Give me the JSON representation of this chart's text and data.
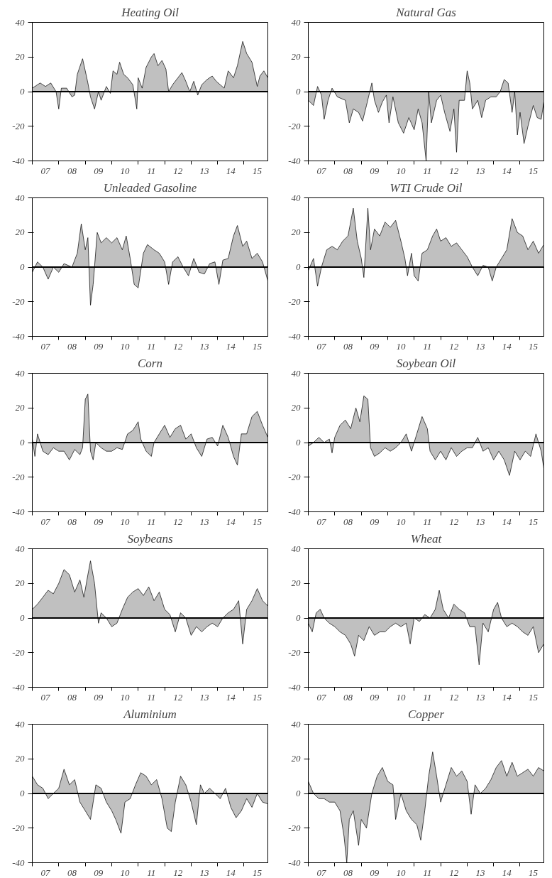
{
  "chart_data": [
    {
      "type": "area",
      "title": "Heating Oil",
      "color": "#c0c0c0",
      "xlim": [
        "2007-01-01",
        "2015-11-25"
      ],
      "ylim": [
        -40,
        40
      ],
      "yticks": [
        -40,
        -20,
        0,
        20,
        40
      ],
      "grid": false,
      "ref_lines": [
        {
          "axis": "y",
          "value": 0
        }
      ],
      "xticks": [
        {
          "value": "2007-01-01",
          "label": null
        },
        {
          "value": "2007-07-02",
          "label": "07"
        },
        {
          "value": "2008-01-01",
          "label": null
        },
        {
          "value": "2008-07-02",
          "label": "08"
        },
        {
          "value": "2009-01-01",
          "label": null
        },
        {
          "value": "2009-07-02",
          "label": "09"
        },
        {
          "value": "2010-01-01",
          "label": null
        },
        {
          "value": "2010-07-02",
          "label": "10"
        },
        {
          "value": "2011-01-01",
          "label": null
        },
        {
          "value": "2011-07-02",
          "label": "11"
        },
        {
          "value": "2012-01-01",
          "label": null
        },
        {
          "value": "2012-07-02",
          "label": "12"
        },
        {
          "value": "2013-01-01",
          "label": null
        },
        {
          "value": "2013-07-02",
          "label": "13"
        },
        {
          "value": "2014-01-01",
          "label": null
        },
        {
          "value": "2014-07-02",
          "label": "14"
        },
        {
          "value": "2015-01-01",
          "label": null
        },
        {
          "value": "2015-07-02",
          "label": "15"
        }
      ],
      "x": [
        "2007-01-01",
        "2007-04-20",
        "2007-07-02",
        "2007-09-13",
        "2007-11-25",
        "2008-01-01",
        "2008-02-06",
        "2008-04-20",
        "2008-07-02",
        "2008-08-08",
        "2008-09-13",
        "2008-11-25",
        "2009-01-01",
        "2009-02-06",
        "2009-03-14",
        "2009-05-09",
        "2009-07-02",
        "2009-08-08",
        "2009-10-19",
        "2009-12-13",
        "2010-01-19",
        "2010-03-14",
        "2010-04-20",
        "2010-06-15",
        "2010-08-08",
        "2010-10-19",
        "2010-12-13",
        "2011-01-01",
        "2011-02-25",
        "2011-04-20",
        "2011-07-02",
        "2011-08-08",
        "2011-10-01",
        "2011-11-25",
        "2012-01-19",
        "2012-02-25",
        "2012-04-20",
        "2012-07-02",
        "2012-08-26",
        "2012-10-19",
        "2012-12-13",
        "2013-02-06",
        "2013-04-02",
        "2013-05-27",
        "2013-08-08",
        "2013-10-19",
        "2013-12-13",
        "2014-02-06",
        "2014-04-02",
        "2014-05-27",
        "2014-08-08",
        "2014-10-01",
        "2014-12-13",
        "2015-02-06",
        "2015-04-20",
        "2015-07-02",
        "2015-08-08",
        "2015-10-01",
        "2015-11-25"
      ],
      "values": [
        2,
        5,
        3,
        5,
        0,
        -10,
        2,
        2,
        -3,
        -2,
        10,
        19,
        12,
        5,
        -3,
        -10,
        0,
        -5,
        3,
        -1,
        12,
        10,
        17,
        10,
        8,
        4,
        -10,
        8,
        2,
        14,
        20,
        22,
        15,
        18,
        13,
        0,
        4,
        8,
        11,
        6,
        0,
        6,
        -2,
        4,
        7,
        9,
        6,
        4,
        2,
        12,
        8,
        15,
        29,
        22,
        17,
        3,
        9,
        12,
        8
      ]
    },
    {
      "type": "area",
      "title": "Natural Gas",
      "color": "#c0c0c0",
      "xlim": [
        "2007-01-01",
        "2015-11-25"
      ],
      "ylim": [
        -40,
        40
      ],
      "yticks": [
        -40,
        -20,
        0,
        20,
        40
      ],
      "grid": false,
      "ref_lines": [
        {
          "axis": "y",
          "value": 0
        }
      ],
      "xticks": [
        {
          "value": "2007-01-01",
          "label": null
        },
        {
          "value": "2007-07-02",
          "label": "07"
        },
        {
          "value": "2008-01-01",
          "label": null
        },
        {
          "value": "2008-07-02",
          "label": "08"
        },
        {
          "value": "2009-01-01",
          "label": null
        },
        {
          "value": "2009-07-02",
          "label": "09"
        },
        {
          "value": "2010-01-01",
          "label": null
        },
        {
          "value": "2010-07-02",
          "label": "10"
        },
        {
          "value": "2011-01-01",
          "label": null
        },
        {
          "value": "2011-07-02",
          "label": "11"
        },
        {
          "value": "2012-01-01",
          "label": null
        },
        {
          "value": "2012-07-02",
          "label": "12"
        },
        {
          "value": "2013-01-01",
          "label": null
        },
        {
          "value": "2013-07-02",
          "label": "13"
        },
        {
          "value": "2014-01-01",
          "label": null
        },
        {
          "value": "2014-07-02",
          "label": "14"
        },
        {
          "value": "2015-01-01",
          "label": null
        },
        {
          "value": "2015-07-02",
          "label": "15"
        }
      ],
      "x": [
        "2007-01-01",
        "2007-03-14",
        "2007-05-09",
        "2007-07-02",
        "2007-08-08",
        "2007-10-01",
        "2007-11-25",
        "2008-02-06",
        "2008-05-27",
        "2008-07-20",
        "2008-09-13",
        "2008-11-25",
        "2009-01-19",
        "2009-03-14",
        "2009-05-27",
        "2009-07-02",
        "2009-08-26",
        "2009-10-19",
        "2009-12-13",
        "2010-01-19",
        "2010-03-14",
        "2010-05-27",
        "2010-08-08",
        "2010-10-19",
        "2011-01-01",
        "2011-02-25",
        "2011-04-20",
        "2011-06-15",
        "2011-07-20",
        "2011-08-26",
        "2011-11-07",
        "2012-01-01",
        "2012-02-25",
        "2012-05-09",
        "2012-07-02",
        "2012-08-08",
        "2012-09-13",
        "2012-11-25",
        "2013-01-01",
        "2013-02-06",
        "2013-03-14",
        "2013-05-27",
        "2013-07-20",
        "2013-09-13",
        "2013-11-25",
        "2014-02-06",
        "2014-04-02",
        "2014-05-27",
        "2014-07-20",
        "2014-09-13",
        "2014-10-19",
        "2014-11-25",
        "2015-01-01",
        "2015-02-25",
        "2015-04-20",
        "2015-07-02",
        "2015-08-26",
        "2015-10-19",
        "2015-11-25"
      ],
      "values": [
        -5,
        -8,
        3,
        -2,
        -16,
        -5,
        2,
        -3,
        -5,
        -18,
        -10,
        -12,
        -17,
        -8,
        5,
        -5,
        -12,
        -6,
        -2,
        -18,
        -3,
        -18,
        -24,
        -15,
        -22,
        -10,
        -18,
        -40,
        0,
        -18,
        -5,
        -2,
        -12,
        -23,
        -10,
        -35,
        -5,
        -5,
        12,
        5,
        -10,
        -5,
        -15,
        -5,
        -3,
        -3,
        0,
        7,
        5,
        -12,
        0,
        -25,
        -12,
        -30,
        -20,
        -8,
        -15,
        -16,
        -6
      ]
    },
    {
      "type": "area",
      "title": "Unleaded Gasoline",
      "color": "#c0c0c0",
      "xlim": [
        "2007-01-01",
        "2015-11-25"
      ],
      "ylim": [
        -40,
        40
      ],
      "yticks": [
        -40,
        -20,
        0,
        20,
        40
      ],
      "grid": false,
      "ref_lines": [
        {
          "axis": "y",
          "value": 0
        }
      ],
      "xticks": [
        {
          "value": "2007-01-01",
          "label": null
        },
        {
          "value": "2007-07-02",
          "label": "07"
        },
        {
          "value": "2008-01-01",
          "label": null
        },
        {
          "value": "2008-07-02",
          "label": "08"
        },
        {
          "value": "2009-01-01",
          "label": null
        },
        {
          "value": "2009-07-02",
          "label": "09"
        },
        {
          "value": "2010-01-01",
          "label": null
        },
        {
          "value": "2010-07-02",
          "label": "10"
        },
        {
          "value": "2011-01-01",
          "label": null
        },
        {
          "value": "2011-07-02",
          "label": "11"
        },
        {
          "value": "2012-01-01",
          "label": null
        },
        {
          "value": "2012-07-02",
          "label": "12"
        },
        {
          "value": "2013-01-01",
          "label": null
        },
        {
          "value": "2013-07-02",
          "label": "13"
        },
        {
          "value": "2014-01-01",
          "label": null
        },
        {
          "value": "2014-07-02",
          "label": "14"
        },
        {
          "value": "2015-01-01",
          "label": null
        },
        {
          "value": "2015-07-02",
          "label": "15"
        }
      ],
      "x": [
        "2007-01-01",
        "2007-03-14",
        "2007-05-27",
        "2007-08-08",
        "2007-10-19",
        "2008-01-01",
        "2008-03-14",
        "2008-07-02",
        "2008-09-13",
        "2008-11-07",
        "2009-01-01",
        "2009-02-06",
        "2009-03-14",
        "2009-04-20",
        "2009-06-15",
        "2009-08-08",
        "2009-10-19",
        "2010-01-01",
        "2010-03-14",
        "2010-05-27",
        "2010-07-20",
        "2010-09-13",
        "2010-11-07",
        "2011-01-01",
        "2011-03-14",
        "2011-05-09",
        "2011-08-08",
        "2011-10-19",
        "2012-01-01",
        "2012-02-25",
        "2012-04-20",
        "2012-07-02",
        "2012-09-13",
        "2012-11-25",
        "2013-02-06",
        "2013-04-20",
        "2013-07-02",
        "2013-09-13",
        "2013-11-25",
        "2014-01-19",
        "2014-03-14",
        "2014-05-27",
        "2014-08-08",
        "2014-10-01",
        "2014-12-13",
        "2015-02-06",
        "2015-04-20",
        "2015-07-02",
        "2015-09-13",
        "2015-11-25"
      ],
      "values": [
        -3,
        3,
        0,
        -7,
        0,
        -3,
        2,
        0,
        8,
        25,
        10,
        17,
        -22,
        -10,
        20,
        14,
        17,
        14,
        17,
        10,
        18,
        5,
        -10,
        -12,
        8,
        13,
        10,
        8,
        3,
        -10,
        3,
        6,
        0,
        -5,
        5,
        -3,
        -4,
        2,
        3,
        -10,
        4,
        5,
        18,
        24,
        12,
        15,
        5,
        8,
        3,
        -8
      ]
    },
    {
      "type": "area",
      "title": "WTI Crude Oil",
      "color": "#c0c0c0",
      "xlim": [
        "2007-01-01",
        "2015-11-25"
      ],
      "ylim": [
        -40,
        40
      ],
      "yticks": [
        -40,
        -20,
        0,
        20,
        40
      ],
      "grid": false,
      "ref_lines": [
        {
          "axis": "y",
          "value": 0
        }
      ],
      "xticks": [
        {
          "value": "2007-01-01",
          "label": null
        },
        {
          "value": "2007-07-02",
          "label": "07"
        },
        {
          "value": "2008-01-01",
          "label": null
        },
        {
          "value": "2008-07-02",
          "label": "08"
        },
        {
          "value": "2009-01-01",
          "label": null
        },
        {
          "value": "2009-07-02",
          "label": "09"
        },
        {
          "value": "2010-01-01",
          "label": null
        },
        {
          "value": "2010-07-02",
          "label": "10"
        },
        {
          "value": "2011-01-01",
          "label": null
        },
        {
          "value": "2011-07-02",
          "label": "11"
        },
        {
          "value": "2012-01-01",
          "label": null
        },
        {
          "value": "2012-07-02",
          "label": "12"
        },
        {
          "value": "2013-01-01",
          "label": null
        },
        {
          "value": "2013-07-02",
          "label": "13"
        },
        {
          "value": "2014-01-01",
          "label": null
        },
        {
          "value": "2014-07-02",
          "label": "14"
        },
        {
          "value": "2015-01-01",
          "label": null
        },
        {
          "value": "2015-07-02",
          "label": "15"
        }
      ],
      "x": [
        "2007-01-01",
        "2007-03-14",
        "2007-05-09",
        "2007-07-02",
        "2007-09-13",
        "2007-11-25",
        "2008-02-06",
        "2008-04-20",
        "2008-07-02",
        "2008-09-13",
        "2008-11-07",
        "2009-01-01",
        "2009-02-06",
        "2009-04-02",
        "2009-05-09",
        "2009-07-02",
        "2009-09-13",
        "2009-11-25",
        "2010-02-06",
        "2010-04-20",
        "2010-07-02",
        "2010-08-26",
        "2010-10-01",
        "2010-11-25",
        "2011-01-01",
        "2011-02-25",
        "2011-04-20",
        "2011-07-02",
        "2011-09-13",
        "2011-11-07",
        "2012-01-01",
        "2012-03-14",
        "2012-05-27",
        "2012-08-08",
        "2012-10-19",
        "2013-01-01",
        "2013-03-14",
        "2013-05-27",
        "2013-08-08",
        "2013-10-19",
        "2013-12-13",
        "2014-02-06",
        "2014-04-20",
        "2014-07-02",
        "2014-09-13",
        "2014-11-25",
        "2015-02-06",
        "2015-04-20",
        "2015-07-02",
        "2015-09-13",
        "2015-11-25"
      ],
      "values": [
        -2,
        5,
        -11,
        0,
        10,
        12,
        10,
        15,
        18,
        34,
        15,
        5,
        -6,
        34,
        10,
        22,
        18,
        26,
        23,
        27,
        15,
        5,
        -5,
        8,
        -5,
        -8,
        8,
        10,
        18,
        22,
        15,
        17,
        12,
        14,
        10,
        6,
        0,
        -5,
        1,
        0,
        -8,
        0,
        5,
        10,
        28,
        20,
        18,
        10,
        15,
        8,
        13
      ]
    },
    {
      "type": "area",
      "title": "Corn",
      "color": "#c0c0c0",
      "xlim": [
        "2007-01-01",
        "2015-11-25"
      ],
      "ylim": [
        -40,
        40
      ],
      "yticks": [
        -40,
        -20,
        0,
        20,
        40
      ],
      "grid": false,
      "ref_lines": [
        {
          "axis": "y",
          "value": 0
        }
      ],
      "xticks": [
        {
          "value": "2007-01-01",
          "label": null
        },
        {
          "value": "2007-07-02",
          "label": "07"
        },
        {
          "value": "2008-01-01",
          "label": null
        },
        {
          "value": "2008-07-02",
          "label": "08"
        },
        {
          "value": "2009-01-01",
          "label": null
        },
        {
          "value": "2009-07-02",
          "label": "09"
        },
        {
          "value": "2010-01-01",
          "label": null
        },
        {
          "value": "2010-07-02",
          "label": "10"
        },
        {
          "value": "2011-01-01",
          "label": null
        },
        {
          "value": "2011-07-02",
          "label": "11"
        },
        {
          "value": "2012-01-01",
          "label": null
        },
        {
          "value": "2012-07-02",
          "label": "12"
        },
        {
          "value": "2013-01-01",
          "label": null
        },
        {
          "value": "2013-07-02",
          "label": "13"
        },
        {
          "value": "2014-01-01",
          "label": null
        },
        {
          "value": "2014-07-02",
          "label": "14"
        },
        {
          "value": "2015-01-01",
          "label": null
        },
        {
          "value": "2015-07-02",
          "label": "15"
        }
      ],
      "x": [
        "2007-01-01",
        "2007-02-06",
        "2007-03-14",
        "2007-05-27",
        "2007-08-08",
        "2007-10-19",
        "2008-01-01",
        "2008-03-14",
        "2008-05-27",
        "2008-08-08",
        "2008-10-19",
        "2008-11-25",
        "2009-01-01",
        "2009-02-06",
        "2009-03-14",
        "2009-04-20",
        "2009-05-27",
        "2009-08-08",
        "2009-10-19",
        "2010-01-01",
        "2010-03-14",
        "2010-05-27",
        "2010-08-08",
        "2010-10-19",
        "2011-01-01",
        "2011-02-06",
        "2011-04-20",
        "2011-07-02",
        "2011-08-08",
        "2011-10-19",
        "2012-01-01",
        "2012-03-14",
        "2012-05-27",
        "2012-08-08",
        "2012-10-19",
        "2013-01-01",
        "2013-03-14",
        "2013-05-27",
        "2013-08-08",
        "2013-10-19",
        "2014-01-01",
        "2014-03-14",
        "2014-05-27",
        "2014-08-08",
        "2014-10-01",
        "2014-11-25",
        "2015-02-06",
        "2015-04-20",
        "2015-07-02",
        "2015-09-13",
        "2015-11-25"
      ],
      "values": [
        2,
        -8,
        5,
        -5,
        -7,
        -3,
        -5,
        -5,
        -10,
        -4,
        -7,
        -3,
        25,
        28,
        -5,
        -10,
        0,
        -3,
        -5,
        -5,
        -3,
        -4,
        5,
        7,
        12,
        2,
        -5,
        -8,
        0,
        5,
        10,
        3,
        8,
        10,
        2,
        5,
        -3,
        -8,
        2,
        3,
        -2,
        10,
        3,
        -8,
        -13,
        5,
        5,
        15,
        18,
        10,
        3
      ]
    },
    {
      "type": "area",
      "title": "Soybean Oil",
      "color": "#c0c0c0",
      "xlim": [
        "2007-01-01",
        "2015-11-25"
      ],
      "ylim": [
        -40,
        40
      ],
      "yticks": [
        -40,
        -20,
        0,
        20,
        40
      ],
      "grid": false,
      "ref_lines": [
        {
          "axis": "y",
          "value": 0
        }
      ],
      "xticks": [
        {
          "value": "2007-01-01",
          "label": null
        },
        {
          "value": "2007-07-02",
          "label": "07"
        },
        {
          "value": "2008-01-01",
          "label": null
        },
        {
          "value": "2008-07-02",
          "label": "08"
        },
        {
          "value": "2009-01-01",
          "label": null
        },
        {
          "value": "2009-07-02",
          "label": "09"
        },
        {
          "value": "2010-01-01",
          "label": null
        },
        {
          "value": "2010-07-02",
          "label": "10"
        },
        {
          "value": "2011-01-01",
          "label": null
        },
        {
          "value": "2011-07-02",
          "label": "11"
        },
        {
          "value": "2012-01-01",
          "label": null
        },
        {
          "value": "2012-07-02",
          "label": "12"
        },
        {
          "value": "2013-01-01",
          "label": null
        },
        {
          "value": "2013-07-02",
          "label": "13"
        },
        {
          "value": "2014-01-01",
          "label": null
        },
        {
          "value": "2014-07-02",
          "label": "14"
        },
        {
          "value": "2015-01-01",
          "label": null
        },
        {
          "value": "2015-07-02",
          "label": "15"
        }
      ],
      "x": [
        "2007-01-01",
        "2007-03-14",
        "2007-05-27",
        "2007-08-08",
        "2007-10-19",
        "2007-11-25",
        "2008-01-01",
        "2008-03-14",
        "2008-05-27",
        "2008-08-08",
        "2008-10-19",
        "2008-12-13",
        "2009-02-06",
        "2009-04-02",
        "2009-05-09",
        "2009-07-02",
        "2009-09-13",
        "2009-11-25",
        "2010-02-06",
        "2010-04-20",
        "2010-07-02",
        "2010-09-13",
        "2010-11-25",
        "2011-02-06",
        "2011-04-20",
        "2011-07-02",
        "2011-08-08",
        "2011-10-19",
        "2012-01-01",
        "2012-03-14",
        "2012-05-27",
        "2012-08-08",
        "2012-10-19",
        "2013-01-01",
        "2013-03-14",
        "2013-05-27",
        "2013-08-08",
        "2013-10-19",
        "2014-01-01",
        "2014-03-14",
        "2014-05-27",
        "2014-08-08",
        "2014-10-19",
        "2015-01-01",
        "2015-03-14",
        "2015-05-27",
        "2015-08-08",
        "2015-10-19",
        "2015-11-25"
      ],
      "values": [
        -2,
        0,
        3,
        0,
        2,
        -6,
        3,
        10,
        13,
        8,
        20,
        12,
        27,
        25,
        -3,
        -8,
        -6,
        -3,
        -5,
        -3,
        0,
        5,
        -5,
        5,
        15,
        8,
        -5,
        -10,
        -5,
        -10,
        -3,
        -8,
        -5,
        -3,
        -3,
        3,
        -5,
        -3,
        -10,
        -5,
        -10,
        -19,
        -5,
        -10,
        -5,
        -8,
        5,
        -5,
        -15
      ]
    },
    {
      "type": "area",
      "title": "Soybeans",
      "color": "#c0c0c0",
      "xlim": [
        "2007-01-01",
        "2015-11-25"
      ],
      "ylim": [
        -40,
        40
      ],
      "yticks": [
        -40,
        -20,
        0,
        20,
        40
      ],
      "grid": false,
      "ref_lines": [
        {
          "axis": "y",
          "value": 0
        }
      ],
      "xticks": [
        {
          "value": "2007-01-01",
          "label": null
        },
        {
          "value": "2007-07-02",
          "label": "07"
        },
        {
          "value": "2008-01-01",
          "label": null
        },
        {
          "value": "2008-07-02",
          "label": "08"
        },
        {
          "value": "2009-01-01",
          "label": null
        },
        {
          "value": "2009-07-02",
          "label": "09"
        },
        {
          "value": "2010-01-01",
          "label": null
        },
        {
          "value": "2010-07-02",
          "label": "10"
        },
        {
          "value": "2011-01-01",
          "label": null
        },
        {
          "value": "2011-07-02",
          "label": "11"
        },
        {
          "value": "2012-01-01",
          "label": null
        },
        {
          "value": "2012-07-02",
          "label": "12"
        },
        {
          "value": "2013-01-01",
          "label": null
        },
        {
          "value": "2013-07-02",
          "label": "13"
        },
        {
          "value": "2014-01-01",
          "label": null
        },
        {
          "value": "2014-07-02",
          "label": "14"
        },
        {
          "value": "2015-01-01",
          "label": null
        },
        {
          "value": "2015-07-02",
          "label": "15"
        }
      ],
      "x": [
        "2007-01-01",
        "2007-03-14",
        "2007-05-27",
        "2007-08-08",
        "2007-10-19",
        "2008-01-01",
        "2008-03-14",
        "2008-05-27",
        "2008-08-08",
        "2008-10-19",
        "2008-12-13",
        "2009-02-06",
        "2009-03-14",
        "2009-05-09",
        "2009-07-02",
        "2009-08-08",
        "2009-10-19",
        "2010-01-01",
        "2010-03-14",
        "2010-05-27",
        "2010-08-08",
        "2010-10-19",
        "2011-01-01",
        "2011-03-14",
        "2011-05-27",
        "2011-08-08",
        "2011-10-19",
        "2012-01-01",
        "2012-03-14",
        "2012-05-27",
        "2012-08-08",
        "2012-10-19",
        "2013-01-01",
        "2013-03-14",
        "2013-05-27",
        "2013-08-08",
        "2013-10-19",
        "2014-01-01",
        "2014-03-14",
        "2014-05-27",
        "2014-08-08",
        "2014-10-19",
        "2014-12-13",
        "2015-02-06",
        "2015-04-20",
        "2015-07-02",
        "2015-09-13",
        "2015-11-25"
      ],
      "values": [
        5,
        8,
        12,
        16,
        14,
        20,
        28,
        25,
        15,
        22,
        12,
        25,
        33,
        20,
        -3,
        3,
        0,
        -5,
        -3,
        5,
        12,
        15,
        17,
        13,
        18,
        10,
        15,
        5,
        2,
        -8,
        3,
        0,
        -10,
        -5,
        -8,
        -5,
        -3,
        -5,
        0,
        3,
        5,
        10,
        -15,
        5,
        10,
        17,
        10,
        7
      ]
    },
    {
      "type": "area",
      "title": "Wheat",
      "color": "#c0c0c0",
      "xlim": [
        "2007-01-01",
        "2015-11-25"
      ],
      "ylim": [
        -40,
        40
      ],
      "yticks": [
        -40,
        -20,
        0,
        20,
        40
      ],
      "grid": false,
      "ref_lines": [
        {
          "axis": "y",
          "value": 0
        }
      ],
      "xticks": [
        {
          "value": "2007-01-01",
          "label": null
        },
        {
          "value": "2007-07-02",
          "label": "07"
        },
        {
          "value": "2008-01-01",
          "label": null
        },
        {
          "value": "2008-07-02",
          "label": "08"
        },
        {
          "value": "2009-01-01",
          "label": null
        },
        {
          "value": "2009-07-02",
          "label": "09"
        },
        {
          "value": "2010-01-01",
          "label": null
        },
        {
          "value": "2010-07-02",
          "label": "10"
        },
        {
          "value": "2011-01-01",
          "label": null
        },
        {
          "value": "2011-07-02",
          "label": "11"
        },
        {
          "value": "2012-01-01",
          "label": null
        },
        {
          "value": "2012-07-02",
          "label": "12"
        },
        {
          "value": "2013-01-01",
          "label": null
        },
        {
          "value": "2013-07-02",
          "label": "13"
        },
        {
          "value": "2014-01-01",
          "label": null
        },
        {
          "value": "2014-07-02",
          "label": "14"
        },
        {
          "value": "2015-01-01",
          "label": null
        },
        {
          "value": "2015-07-02",
          "label": "15"
        }
      ],
      "x": [
        "2007-01-01",
        "2007-02-25",
        "2007-04-20",
        "2007-06-15",
        "2007-08-08",
        "2007-10-19",
        "2008-01-01",
        "2008-03-14",
        "2008-05-27",
        "2008-08-08",
        "2008-10-01",
        "2008-11-25",
        "2009-02-06",
        "2009-04-20",
        "2009-07-02",
        "2009-09-13",
        "2009-11-25",
        "2010-02-06",
        "2010-04-20",
        "2010-07-02",
        "2010-09-13",
        "2010-11-07",
        "2011-01-01",
        "2011-03-14",
        "2011-05-27",
        "2011-08-08",
        "2011-10-19",
        "2011-12-13",
        "2012-02-06",
        "2012-04-20",
        "2012-07-02",
        "2012-09-13",
        "2012-11-25",
        "2013-02-06",
        "2013-04-20",
        "2013-06-15",
        "2013-08-08",
        "2013-10-19",
        "2014-01-01",
        "2014-02-25",
        "2014-04-20",
        "2014-07-02",
        "2014-09-13",
        "2014-11-25",
        "2015-02-06",
        "2015-04-20",
        "2015-07-02",
        "2015-09-13",
        "2015-11-25"
      ],
      "values": [
        -3,
        -8,
        3,
        5,
        0,
        -3,
        -5,
        -8,
        -10,
        -15,
        -22,
        -10,
        -13,
        -5,
        -10,
        -8,
        -8,
        -5,
        -3,
        -5,
        -3,
        -15,
        0,
        -2,
        2,
        0,
        5,
        16,
        5,
        0,
        8,
        5,
        3,
        -5,
        -5,
        -27,
        -3,
        -8,
        5,
        9,
        0,
        -5,
        -3,
        -5,
        -8,
        -10,
        -5,
        -20,
        -15
      ]
    },
    {
      "type": "area",
      "title": "Aluminium",
      "color": "#c0c0c0",
      "xlim": [
        "2007-01-01",
        "2015-11-25"
      ],
      "ylim": [
        -40,
        40
      ],
      "yticks": [
        -40,
        -20,
        0,
        20,
        40
      ],
      "grid": false,
      "ref_lines": [
        {
          "axis": "y",
          "value": 0
        }
      ],
      "xticks": [
        {
          "value": "2007-01-01",
          "label": null
        },
        {
          "value": "2007-07-02",
          "label": "07"
        },
        {
          "value": "2008-01-01",
          "label": null
        },
        {
          "value": "2008-07-02",
          "label": "08"
        },
        {
          "value": "2009-01-01",
          "label": null
        },
        {
          "value": "2009-07-02",
          "label": "09"
        },
        {
          "value": "2010-01-01",
          "label": null
        },
        {
          "value": "2010-07-02",
          "label": "10"
        },
        {
          "value": "2011-01-01",
          "label": null
        },
        {
          "value": "2011-07-02",
          "label": "11"
        },
        {
          "value": "2012-01-01",
          "label": null
        },
        {
          "value": "2012-07-02",
          "label": "12"
        },
        {
          "value": "2013-01-01",
          "label": null
        },
        {
          "value": "2013-07-02",
          "label": "13"
        },
        {
          "value": "2014-01-01",
          "label": null
        },
        {
          "value": "2014-07-02",
          "label": "14"
        },
        {
          "value": "2015-01-01",
          "label": null
        },
        {
          "value": "2015-07-02",
          "label": "15"
        }
      ],
      "x": [
        "2007-01-01",
        "2007-03-14",
        "2007-05-27",
        "2007-08-08",
        "2007-10-19",
        "2008-01-01",
        "2008-03-14",
        "2008-05-27",
        "2008-08-08",
        "2008-10-19",
        "2009-01-01",
        "2009-03-14",
        "2009-05-27",
        "2009-08-08",
        "2009-10-19",
        "2010-01-01",
        "2010-02-25",
        "2010-05-09",
        "2010-07-02",
        "2010-09-13",
        "2010-11-25",
        "2011-02-06",
        "2011-04-20",
        "2011-07-02",
        "2011-09-13",
        "2011-11-25",
        "2012-02-06",
        "2012-04-02",
        "2012-05-27",
        "2012-08-08",
        "2012-10-19",
        "2013-01-01",
        "2013-03-14",
        "2013-05-09",
        "2013-07-02",
        "2013-09-13",
        "2013-11-25",
        "2014-02-06",
        "2014-04-20",
        "2014-07-02",
        "2014-09-13",
        "2014-11-25",
        "2015-02-06",
        "2015-04-20",
        "2015-07-02",
        "2015-09-13",
        "2015-11-25"
      ],
      "values": [
        10,
        5,
        3,
        -3,
        0,
        3,
        14,
        5,
        8,
        -5,
        -10,
        -15,
        5,
        3,
        -5,
        -10,
        -15,
        -23,
        -5,
        -3,
        5,
        12,
        10,
        5,
        8,
        -3,
        -20,
        -22,
        -5,
        10,
        5,
        -5,
        -18,
        5,
        0,
        3,
        0,
        -3,
        3,
        -8,
        -14,
        -10,
        -3,
        -8,
        0,
        -5,
        -6
      ]
    },
    {
      "type": "area",
      "title": "Copper",
      "color": "#c0c0c0",
      "xlim": [
        "2007-01-01",
        "2015-11-25"
      ],
      "ylim": [
        -40,
        40
      ],
      "yticks": [
        -40,
        -20,
        0,
        20,
        40
      ],
      "grid": false,
      "ref_lines": [
        {
          "axis": "y",
          "value": 0
        }
      ],
      "xticks": [
        {
          "value": "2007-01-01",
          "label": null
        },
        {
          "value": "2007-07-02",
          "label": "07"
        },
        {
          "value": "2008-01-01",
          "label": null
        },
        {
          "value": "2008-07-02",
          "label": "08"
        },
        {
          "value": "2009-01-01",
          "label": null
        },
        {
          "value": "2009-07-02",
          "label": "09"
        },
        {
          "value": "2010-01-01",
          "label": null
        },
        {
          "value": "2010-07-02",
          "label": "10"
        },
        {
          "value": "2011-01-01",
          "label": null
        },
        {
          "value": "2011-07-02",
          "label": "11"
        },
        {
          "value": "2012-01-01",
          "label": null
        },
        {
          "value": "2012-07-02",
          "label": "12"
        },
        {
          "value": "2013-01-01",
          "label": null
        },
        {
          "value": "2013-07-02",
          "label": "13"
        },
        {
          "value": "2014-01-01",
          "label": null
        },
        {
          "value": "2014-07-02",
          "label": "14"
        },
        {
          "value": "2015-01-01",
          "label": null
        },
        {
          "value": "2015-07-02",
          "label": "15"
        }
      ],
      "x": [
        "2007-01-01",
        "2007-03-14",
        "2007-05-27",
        "2007-08-08",
        "2007-10-19",
        "2008-01-01",
        "2008-03-14",
        "2008-05-09",
        "2008-06-15",
        "2008-07-20",
        "2008-09-13",
        "2008-11-25",
        "2009-01-01",
        "2009-03-14",
        "2009-05-27",
        "2009-08-08",
        "2009-10-19",
        "2010-01-01",
        "2010-03-14",
        "2010-04-20",
        "2010-07-02",
        "2010-09-13",
        "2010-11-25",
        "2011-02-06",
        "2011-04-02",
        "2011-05-27",
        "2011-07-20",
        "2011-09-13",
        "2011-11-07",
        "2012-01-01",
        "2012-03-14",
        "2012-05-27",
        "2012-08-08",
        "2012-10-19",
        "2013-01-01",
        "2013-02-25",
        "2013-04-20",
        "2013-07-02",
        "2013-09-13",
        "2013-11-25",
        "2014-02-06",
        "2014-04-20",
        "2014-07-02",
        "2014-09-13",
        "2014-11-25",
        "2015-02-06",
        "2015-04-20",
        "2015-07-02",
        "2015-09-13",
        "2015-11-25"
      ],
      "values": [
        7,
        0,
        -3,
        -3,
        -5,
        -5,
        -10,
        -25,
        -40,
        -15,
        -10,
        -30,
        -15,
        -20,
        0,
        10,
        15,
        7,
        5,
        -15,
        0,
        -10,
        -15,
        -18,
        -27,
        -10,
        10,
        24,
        10,
        -5,
        5,
        15,
        10,
        13,
        7,
        -12,
        5,
        0,
        3,
        8,
        15,
        19,
        10,
        18,
        10,
        12,
        14,
        10,
        15,
        13
      ]
    }
  ]
}
